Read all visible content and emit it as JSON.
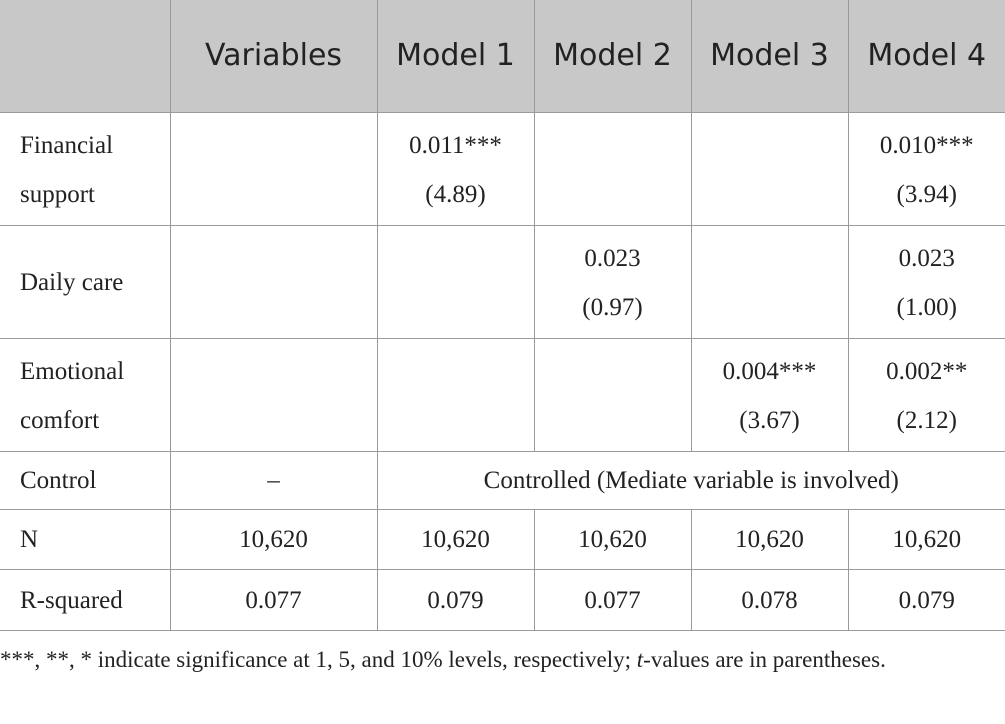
{
  "table": {
    "header": [
      null,
      "Variables",
      "Model 1",
      "Model 2",
      "Model 3",
      "Model 4"
    ],
    "rows": [
      {
        "cells": [
          [
            "Financial",
            "support"
          ],
          null,
          [
            "0.011***",
            "(4.89)"
          ],
          null,
          null,
          [
            "0.010***",
            "(3.94)"
          ]
        ]
      },
      {
        "cells": [
          [
            "Daily care"
          ],
          null,
          null,
          [
            "0.023",
            "(0.97)"
          ],
          null,
          [
            "0.023",
            "(1.00)"
          ]
        ]
      },
      {
        "cells": [
          [
            "Emotional",
            "comfort"
          ],
          null,
          null,
          null,
          [
            "0.004***",
            "(3.67)"
          ],
          [
            "0.002**",
            "(2.12)"
          ]
        ]
      },
      {
        "cells": [
          [
            "Control"
          ],
          [
            "–"
          ],
          [
            "Controlled (Mediate variable is involved)"
          ]
        ]
      },
      {
        "cells": [
          [
            "N"
          ],
          [
            "10,620"
          ],
          [
            "10,620"
          ],
          [
            "10,620"
          ],
          [
            "10,620"
          ],
          [
            "10,620"
          ]
        ]
      },
      {
        "cells": [
          [
            "R-squared"
          ],
          [
            "0.077"
          ],
          [
            "0.079"
          ],
          [
            "0.077"
          ],
          [
            "0.078"
          ],
          [
            "0.079"
          ]
        ]
      }
    ]
  },
  "footnote": [
    "***, **, * indicate significance at 1, 5, and 10% levels, respectively; ",
    "t",
    "-values are in parentheses."
  ]
}
